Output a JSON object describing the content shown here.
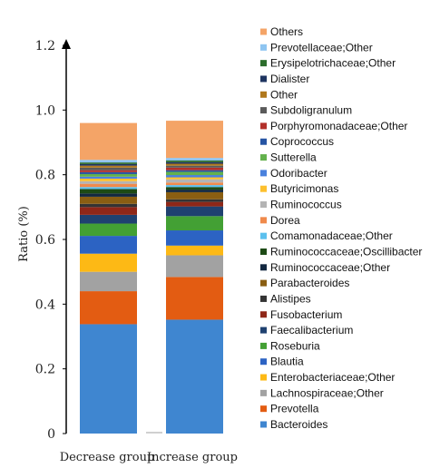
{
  "chart_data": {
    "type": "bar",
    "stacked": true,
    "ylabel": "Ratio (%)",
    "xlabel": "",
    "ylim": [
      0,
      1.2
    ],
    "yticks": [
      "0",
      "0.2",
      "0.4",
      "0.6",
      "0.8",
      "1.0",
      "1.2"
    ],
    "categories": [
      "Decrease group",
      "Increase group"
    ],
    "legend_position": "right",
    "series": [
      {
        "name": "Bacteroides",
        "color": "#3f86d0",
        "values": [
          0.338,
          0.352
        ]
      },
      {
        "name": "Prevotella",
        "color": "#e35c12",
        "values": [
          0.102,
          0.132
        ]
      },
      {
        "name": "Lachnospiraceae;Other",
        "color": "#a2a2a2",
        "values": [
          0.06,
          0.067
        ]
      },
      {
        "name": "Enterobacteriaceae;Other",
        "color": "#fdb915",
        "values": [
          0.056,
          0.03
        ]
      },
      {
        "name": "Blautia",
        "color": "#2c63c3",
        "values": [
          0.055,
          0.047
        ]
      },
      {
        "name": "Roseburia",
        "color": "#43a034",
        "values": [
          0.038,
          0.044
        ]
      },
      {
        "name": "Faecalibacterium",
        "color": "#1f4170",
        "values": [
          0.027,
          0.03
        ]
      },
      {
        "name": "Fusobacterium",
        "color": "#8f2718",
        "values": [
          0.024,
          0.014
        ]
      },
      {
        "name": "Alistipes",
        "color": "#343434",
        "values": [
          0.01,
          0.008
        ]
      },
      {
        "name": "Parabacteroides",
        "color": "#8a5e12",
        "values": [
          0.022,
          0.022
        ]
      },
      {
        "name": "Ruminococcaceae;Other",
        "color": "#132840",
        "values": [
          0.01,
          0.008
        ]
      },
      {
        "name": "Ruminococcaceae;Oscillibacter",
        "color": "#1d4a15",
        "values": [
          0.014,
          0.008
        ]
      },
      {
        "name": "Comamonadaceae;Other",
        "color": "#5cc0ee",
        "values": [
          0.006,
          0.006
        ]
      },
      {
        "name": "Dorea",
        "color": "#f08a4c",
        "values": [
          0.01,
          0.008
        ]
      },
      {
        "name": "Ruminococcus",
        "color": "#b4b4b4",
        "values": [
          0.008,
          0.01
        ]
      },
      {
        "name": "Butyricimonas",
        "color": "#fdc02e",
        "values": [
          0.008,
          0.006
        ]
      },
      {
        "name": "Odoribacter",
        "color": "#4a81dd",
        "values": [
          0.006,
          0.007
        ]
      },
      {
        "name": "Sutterella",
        "color": "#63b14d",
        "values": [
          0.008,
          0.01
        ]
      },
      {
        "name": "Coprococcus",
        "color": "#2654a3",
        "values": [
          0.006,
          0.005
        ]
      },
      {
        "name": "Porphyromonadaceae;Other",
        "color": "#b2302a",
        "values": [
          0.006,
          0.008
        ]
      },
      {
        "name": "Subdoligranulum",
        "color": "#5a5a5a",
        "values": [
          0.008,
          0.006
        ]
      },
      {
        "name": "Other",
        "color": "#b0781c",
        "values": [
          0.006,
          0.006
        ]
      },
      {
        "name": "Dialister",
        "color": "#1e3460",
        "values": [
          0.005,
          0.005
        ]
      },
      {
        "name": "Erysipelotrichaceae;Other",
        "color": "#2c6d2c",
        "values": [
          0.005,
          0.005
        ]
      },
      {
        "name": "Prevotellaceae;Other",
        "color": "#8ec5f1",
        "values": [
          0.008,
          0.008
        ]
      },
      {
        "name": "Others",
        "color": "#f4a467",
        "values": [
          0.114,
          0.115
        ]
      }
    ]
  }
}
